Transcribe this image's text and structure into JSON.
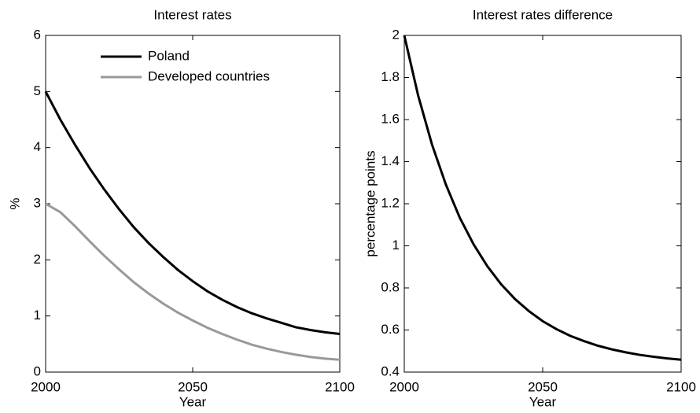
{
  "chart_data": [
    {
      "type": "line",
      "title": "Interest rates",
      "x_label": "Year",
      "y_label": "%",
      "x": [
        2000,
        2005,
        2010,
        2015,
        2020,
        2025,
        2030,
        2035,
        2040,
        2045,
        2050,
        2055,
        2060,
        2065,
        2070,
        2075,
        2080,
        2085,
        2090,
        2095,
        2100
      ],
      "series": [
        {
          "name": "Poland",
          "color": "#000000",
          "values": [
            5.0,
            4.5,
            4.05,
            3.63,
            3.25,
            2.9,
            2.58,
            2.3,
            2.05,
            1.82,
            1.62,
            1.44,
            1.29,
            1.16,
            1.05,
            0.96,
            0.88,
            0.8,
            0.75,
            0.71,
            0.68
          ]
        },
        {
          "name": "Developed countries",
          "color": "#999999",
          "values": [
            3.0,
            2.85,
            2.6,
            2.33,
            2.07,
            1.83,
            1.6,
            1.4,
            1.22,
            1.06,
            0.92,
            0.79,
            0.68,
            0.58,
            0.49,
            0.42,
            0.36,
            0.31,
            0.27,
            0.24,
            0.22
          ]
        }
      ],
      "xlim": [
        2000,
        2100
      ],
      "xticks": [
        2000,
        2050,
        2100
      ],
      "ylim": [
        0,
        6
      ],
      "yticks": [
        0,
        1,
        2,
        3,
        4,
        5,
        6
      ],
      "legend": "upper-left"
    },
    {
      "type": "line",
      "title": "Interest rates difference",
      "x_label": "Year",
      "y_label": "percentage points",
      "x": [
        2000,
        2005,
        2010,
        2015,
        2020,
        2025,
        2030,
        2035,
        2040,
        2045,
        2050,
        2055,
        2060,
        2065,
        2070,
        2075,
        2080,
        2085,
        2090,
        2095,
        2100
      ],
      "series": [
        {
          "color": "#000000",
          "values": [
            2.0,
            1.715,
            1.482,
            1.292,
            1.135,
            1.008,
            0.903,
            0.817,
            0.747,
            0.69,
            0.642,
            0.604,
            0.572,
            0.547,
            0.525,
            0.508,
            0.494,
            0.482,
            0.473,
            0.465,
            0.459
          ]
        }
      ],
      "xlim": [
        2000,
        2100
      ],
      "xticks": [
        2000,
        2050,
        2100
      ],
      "ylim": [
        0.4,
        2
      ],
      "yticks": [
        0.4,
        0.6,
        0.8,
        1,
        1.2,
        1.4,
        1.6,
        1.8,
        2
      ]
    }
  ]
}
